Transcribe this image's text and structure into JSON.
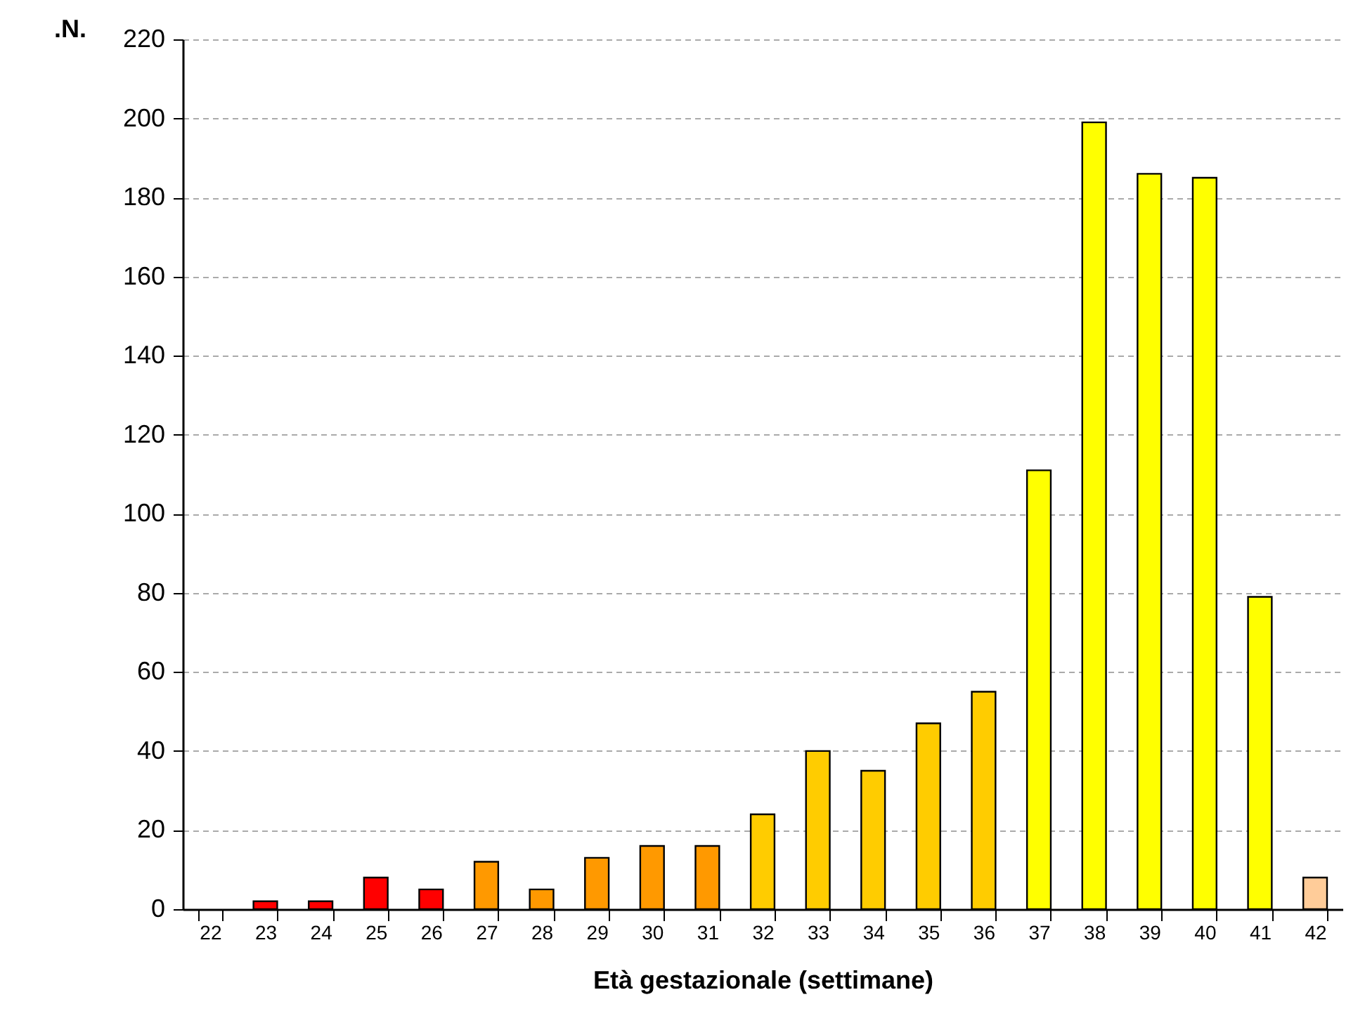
{
  "chart_data": {
    "type": "bar",
    "xlabel": "Età gestazionale (settimane)",
    "ylabel": ".N.",
    "categories": [
      "22",
      "23",
      "24",
      "25",
      "26",
      "27",
      "28",
      "29",
      "30",
      "31",
      "32",
      "33",
      "34",
      "35",
      "36",
      "37",
      "38",
      "39",
      "40",
      "41",
      "42"
    ],
    "values": [
      0,
      2,
      2,
      8,
      5,
      12,
      5,
      13,
      16,
      16,
      24,
      40,
      35,
      47,
      55,
      111,
      199,
      186,
      185,
      79,
      8
    ],
    "colors": [
      "#ff0000",
      "#ff0000",
      "#ff0000",
      "#ff0000",
      "#ff0000",
      "#ff9900",
      "#ff9900",
      "#ff9900",
      "#ff9900",
      "#ff9900",
      "#ffcc00",
      "#ffcc00",
      "#ffcc00",
      "#ffcc00",
      "#ffcc00",
      "#ffff00",
      "#ffff00",
      "#ffff00",
      "#ffff00",
      "#ffff00",
      "#ffcc99"
    ],
    "ylim": [
      0,
      220
    ],
    "yticks": [
      0,
      20,
      40,
      60,
      80,
      100,
      120,
      140,
      160,
      180,
      200,
      220
    ],
    "grid": true
  }
}
